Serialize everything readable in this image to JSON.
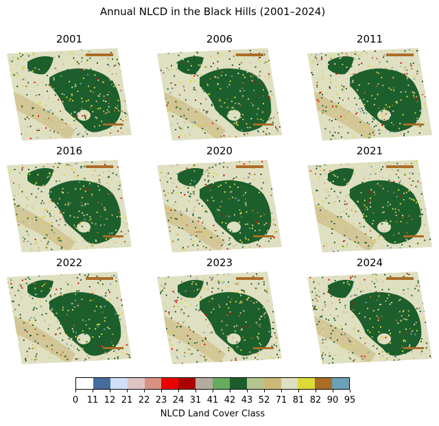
{
  "title": "Annual NLCD in the Black Hills (2001–2024)",
  "panels": [
    {
      "year": "2001"
    },
    {
      "year": "2006"
    },
    {
      "year": "2011"
    },
    {
      "year": "2016"
    },
    {
      "year": "2020"
    },
    {
      "year": "2021"
    },
    {
      "year": "2022"
    },
    {
      "year": "2023"
    },
    {
      "year": "2024"
    }
  ],
  "colorbar": {
    "label": "NLCD Land Cover Class",
    "ticks": [
      "0",
      "11",
      "12",
      "21",
      "22",
      "23",
      "24",
      "31",
      "41",
      "42",
      "43",
      "52",
      "71",
      "81",
      "82",
      "90",
      "95"
    ],
    "colors": [
      "#ffffff",
      "#466b9f",
      "#d1def8",
      "#dec5c5",
      "#d99282",
      "#eb0000",
      "#ab0000",
      "#b3ac9f",
      "#68ab5f",
      "#1c5f2c",
      "#b5c58f",
      "#ccb879",
      "#dfdfc2",
      "#dcd939",
      "#ab6c28",
      "#6ca2b8"
    ]
  }
}
